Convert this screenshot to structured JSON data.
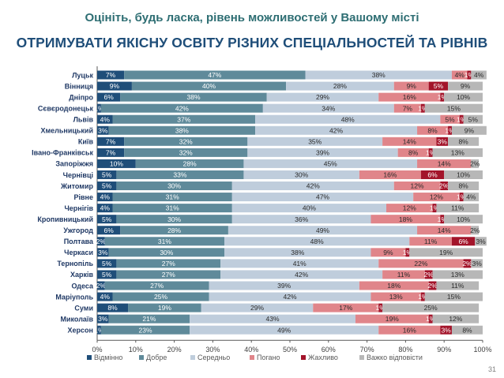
{
  "header": {
    "title": "Оцініть, будь ласка, рівень можливостей у Вашому місті",
    "subtitle": "ОТРИМУВАТИ ЯКІСНУ ОСВІТУ РІЗНИХ СПЕЦІАЛЬНОСТЕЙ ТА РІВНІВ"
  },
  "page_number": "31",
  "chart_data": {
    "type": "bar",
    "orientation": "horizontal",
    "stacked": true,
    "xlim": [
      0,
      100
    ],
    "x_ticks": [
      "0%",
      "10%",
      "20%",
      "30%",
      "40%",
      "50%",
      "60%",
      "70%",
      "80%",
      "90%",
      "100%"
    ],
    "grid": false,
    "legend_position": "bottom",
    "categories": [
      "Луцьк",
      "Вінниця",
      "Дніпро",
      "Сєвєродонецьк",
      "Львів",
      "Хмельницький",
      "Київ",
      "Івано-Франківськ",
      "Запоріжжя",
      "Чернівці",
      "Житомир",
      "Рівне",
      "Чернігів",
      "Кропивницький",
      "Ужгород",
      "Полтава",
      "Черкаси",
      "Тернопіль",
      "Харків",
      "Одеса",
      "Маріуполь",
      "Суми",
      "Миколаїв",
      "Херсон"
    ],
    "series": [
      {
        "name": "Відмінно",
        "color": "#1f4e79",
        "values": [
          7,
          9,
          6,
          1,
          4,
          3,
          7,
          7,
          10,
          5,
          5,
          4,
          4,
          5,
          6,
          2,
          3,
          5,
          5,
          2,
          4,
          8,
          3,
          1
        ]
      },
      {
        "name": "Добре",
        "color": "#5f8a9a",
        "values": [
          47,
          40,
          38,
          42,
          37,
          38,
          32,
          32,
          28,
          33,
          30,
          31,
          31,
          30,
          28,
          31,
          30,
          27,
          27,
          27,
          25,
          19,
          21,
          23
        ]
      },
      {
        "name": "Середньо",
        "color": "#bfcddc",
        "values": [
          38,
          28,
          29,
          34,
          48,
          42,
          35,
          39,
          45,
          30,
          42,
          47,
          40,
          36,
          49,
          48,
          38,
          41,
          42,
          39,
          42,
          29,
          43,
          49
        ]
      },
      {
        "name": "Погано",
        "color": "#e0858a",
        "values": [
          4,
          9,
          16,
          7,
          5,
          8,
          14,
          8,
          14,
          16,
          12,
          12,
          12,
          18,
          14,
          11,
          9,
          22,
          11,
          18,
          13,
          17,
          19,
          16
        ]
      },
      {
        "name": "Жахливо",
        "color": "#a3142a",
        "values": [
          1,
          5,
          1,
          1,
          1,
          1,
          3,
          1,
          0,
          6,
          2,
          1,
          1,
          1,
          0,
          6,
          1,
          2,
          2,
          2,
          1,
          1,
          1,
          3
        ]
      },
      {
        "name": "Важко відповісти",
        "color": "#b7b7b7",
        "values": [
          4,
          9,
          10,
          15,
          5,
          9,
          8,
          13,
          2,
          10,
          8,
          4,
          11,
          10,
          2,
          3,
          19,
          3,
          13,
          11,
          15,
          25,
          12,
          8
        ]
      }
    ]
  }
}
